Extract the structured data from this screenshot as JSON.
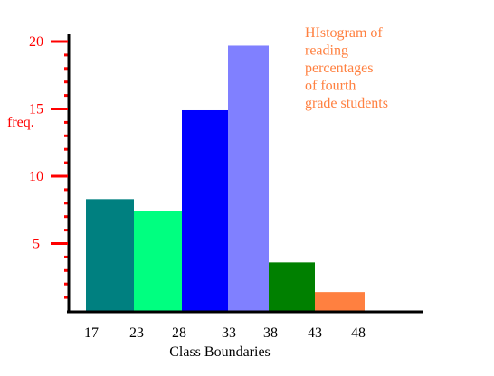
{
  "chart_data": {
    "type": "bar",
    "title_lines": [
      "HIstogram of",
      "reading",
      "percentages",
      "of fourth",
      "grade students"
    ],
    "xlabel": "Class Boundaries",
    "ylabel": "freq.",
    "x_ticks": [
      "17",
      "23",
      "28",
      "33",
      "38",
      "43",
      "48"
    ],
    "y_ticks": [
      "5",
      "10",
      "15",
      "20"
    ],
    "ylim": [
      0,
      20
    ],
    "bins": [
      {
        "from": "17",
        "to": "23",
        "value": 8.3
      },
      {
        "from": "23",
        "to": "28",
        "value": 7.4
      },
      {
        "from": "28",
        "to": "33",
        "value": 14.9
      },
      {
        "from": "33",
        "to": "38",
        "value": 19.7
      },
      {
        "from": "38",
        "to": "43",
        "value": 3.6
      },
      {
        "from": "43",
        "to": "48",
        "value": 1.4
      }
    ],
    "colors": {
      "bars": [
        "#008080",
        "#00ff80",
        "#0000ff",
        "#8080ff",
        "#008000",
        "#ff8040"
      ],
      "ticks": "#ff0000",
      "axis_text": "#ff0000",
      "title": "#ff8040",
      "axis": "#000000"
    }
  }
}
